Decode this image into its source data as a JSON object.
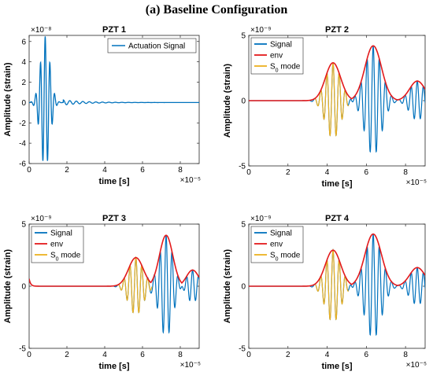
{
  "figure_title": "(a) Baseline Configuration",
  "colors": {
    "signal": "#0072BD",
    "env": "#E31A1C",
    "s0": "#EDB120"
  },
  "chart_data": [
    {
      "type": "line",
      "title": "PZT 1",
      "xlabel": "time [s]",
      "ylabel": "Amplitude (strain)",
      "x_exponent": "×10⁻⁵",
      "y_exponent": "×10⁻⁸",
      "xlim": [
        0,
        9
      ],
      "ylim": [
        -6,
        6.6
      ],
      "xticks": [
        0,
        2,
        4,
        6,
        8
      ],
      "yticks": [
        -6,
        -4,
        -2,
        0,
        2,
        4,
        6
      ],
      "legend_position": "top-right",
      "series": [
        {
          "name": "Actuation Signal",
          "role": "signal",
          "shape": "burst",
          "center": 0.85,
          "width": 0.35,
          "freq": 4.0,
          "amplitude": 6.5,
          "tail": {
            "start": 1.8,
            "amplitude": 0.25,
            "decay": 1.2,
            "freq": 2.9
          }
        }
      ]
    },
    {
      "type": "line",
      "title": "PZT 2",
      "xlabel": "time [s]",
      "ylabel": "Amplitude (strain)",
      "x_exponent": "×10⁻⁵",
      "y_exponent": "×10⁻⁹",
      "xlim": [
        0,
        9
      ],
      "ylim": [
        -5,
        5
      ],
      "xticks": [
        0,
        2,
        4,
        6,
        8
      ],
      "yticks": [
        -5,
        0,
        5
      ],
      "legend_position": "top-left",
      "series": [
        {
          "name": "Signal",
          "role": "signal"
        },
        {
          "name": "env",
          "role": "env"
        },
        {
          "name": "S",
          "sub": "0",
          "suffix": " mode",
          "role": "s0"
        }
      ],
      "packets": [
        {
          "center": 4.3,
          "width": 0.55,
          "amplitude": 2.9,
          "s0": true
        },
        {
          "center": 6.35,
          "width": 0.6,
          "amplitude": 4.2,
          "s0": false
        },
        {
          "center": 8.6,
          "width": 0.55,
          "amplitude": 1.5,
          "s0": false
        }
      ],
      "s0_window": [
        3.4,
        5.1
      ],
      "freq": 3.2
    },
    {
      "type": "line",
      "title": "PZT 3",
      "xlabel": "time [s]",
      "ylabel": "Amplitude (strain)",
      "x_exponent": "×10⁻⁵",
      "y_exponent": "×10⁻⁹",
      "xlim": [
        0,
        9
      ],
      "ylim": [
        -5,
        5
      ],
      "xticks": [
        0,
        2,
        4,
        6,
        8
      ],
      "yticks": [
        -5,
        0,
        5
      ],
      "legend_position": "top-left",
      "series": [
        {
          "name": "Signal",
          "role": "signal"
        },
        {
          "name": "env",
          "role": "env"
        },
        {
          "name": "S",
          "sub": "0",
          "suffix": " mode",
          "role": "s0"
        }
      ],
      "packets": [
        {
          "center": 5.65,
          "width": 0.55,
          "amplitude": 2.3,
          "s0": true
        },
        {
          "center": 7.25,
          "width": 0.5,
          "amplitude": 4.1,
          "s0": false
        },
        {
          "center": 8.65,
          "width": 0.45,
          "amplitude": 1.3,
          "s0": false
        }
      ],
      "s0_window": [
        4.7,
        6.5
      ],
      "start_spike": 0.6,
      "freq": 3.2
    },
    {
      "type": "line",
      "title": "PZT 4",
      "xlabel": "time [s]",
      "ylabel": "Amplitude (strain)",
      "x_exponent": "×10⁻⁵",
      "y_exponent": "×10⁻⁹",
      "xlim": [
        0,
        9
      ],
      "ylim": [
        -5,
        5
      ],
      "xticks": [
        0,
        2,
        4,
        6,
        8
      ],
      "yticks": [
        -5,
        0,
        5
      ],
      "legend_position": "top-left",
      "series": [
        {
          "name": "Signal",
          "role": "signal"
        },
        {
          "name": "env",
          "role": "env"
        },
        {
          "name": "S",
          "sub": "0",
          "suffix": " mode",
          "role": "s0"
        }
      ],
      "packets": [
        {
          "center": 4.3,
          "width": 0.55,
          "amplitude": 2.9,
          "s0": true
        },
        {
          "center": 6.35,
          "width": 0.6,
          "amplitude": 4.2,
          "s0": false
        },
        {
          "center": 8.6,
          "width": 0.55,
          "amplitude": 1.5,
          "s0": false
        }
      ],
      "s0_window": [
        3.4,
        5.1
      ],
      "freq": 3.2
    }
  ]
}
